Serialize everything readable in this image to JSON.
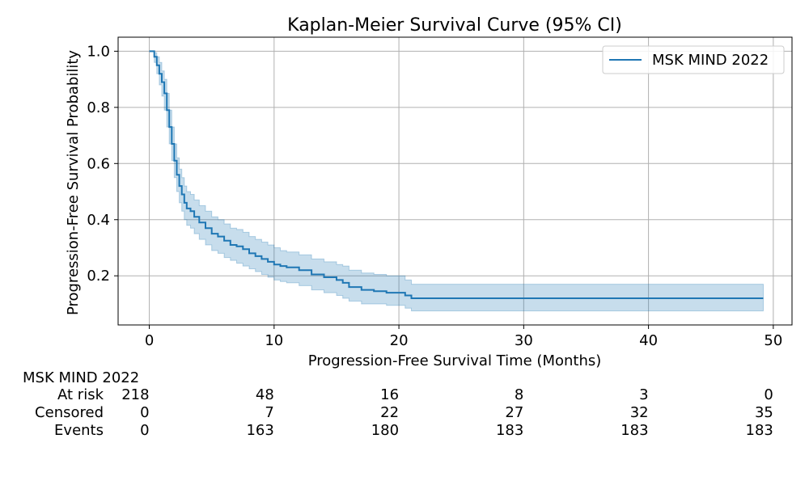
{
  "chart_data": {
    "type": "line",
    "title": "Kaplan-Meier Survival Curve (95% CI)",
    "xlabel": "Progression-Free Survival Time (Months)",
    "ylabel": "Progression-Free Survival Probability",
    "xlim": [
      -2.5,
      51.5
    ],
    "ylim": [
      0.025,
      1.05
    ],
    "xticks": [
      0,
      10,
      20,
      30,
      40,
      50
    ],
    "xtick_labels": [
      "0",
      "10",
      "20",
      "30",
      "40",
      "50"
    ],
    "yticks": [
      0.2,
      0.4,
      0.6,
      0.8,
      1.0
    ],
    "ytick_labels": [
      "0.2",
      "0.4",
      "0.6",
      "0.8",
      "1.0"
    ],
    "grid": true,
    "legend_position": "top-right",
    "colors": {
      "line": "#1f77b4",
      "band": "#1f77b4",
      "grid": "#b0b0b0"
    },
    "series": [
      {
        "name": "MSK MIND 2022",
        "x": [
          0,
          0.4,
          0.6,
          0.8,
          1.0,
          1.2,
          1.4,
          1.6,
          1.8,
          2.0,
          2.2,
          2.4,
          2.6,
          2.8,
          3.0,
          3.3,
          3.6,
          4.0,
          4.5,
          5.0,
          5.5,
          6.0,
          6.5,
          7.0,
          7.5,
          8.0,
          8.5,
          9.0,
          9.5,
          10.0,
          10.5,
          11.0,
          12.0,
          13.0,
          14.0,
          15.0,
          15.5,
          16.0,
          17.0,
          18.0,
          19.0,
          20.0,
          20.5,
          21.0,
          49.2
        ],
        "y": [
          1.0,
          0.98,
          0.95,
          0.92,
          0.89,
          0.85,
          0.79,
          0.73,
          0.67,
          0.61,
          0.56,
          0.52,
          0.49,
          0.46,
          0.44,
          0.43,
          0.41,
          0.39,
          0.37,
          0.35,
          0.34,
          0.325,
          0.31,
          0.305,
          0.295,
          0.28,
          0.27,
          0.26,
          0.25,
          0.24,
          0.235,
          0.23,
          0.22,
          0.205,
          0.195,
          0.185,
          0.175,
          0.16,
          0.15,
          0.145,
          0.14,
          0.14,
          0.13,
          0.12,
          0.12
        ],
        "ci_lower": [
          1.0,
          0.96,
          0.92,
          0.88,
          0.84,
          0.79,
          0.73,
          0.67,
          0.61,
          0.55,
          0.5,
          0.46,
          0.43,
          0.4,
          0.38,
          0.37,
          0.35,
          0.33,
          0.31,
          0.29,
          0.28,
          0.265,
          0.255,
          0.245,
          0.235,
          0.225,
          0.215,
          0.205,
          0.195,
          0.185,
          0.18,
          0.175,
          0.165,
          0.15,
          0.14,
          0.13,
          0.12,
          0.11,
          0.1,
          0.1,
          0.095,
          0.095,
          0.085,
          0.075,
          0.075
        ],
        "ci_upper": [
          1.0,
          0.995,
          0.98,
          0.96,
          0.93,
          0.9,
          0.85,
          0.79,
          0.73,
          0.67,
          0.62,
          0.58,
          0.55,
          0.52,
          0.5,
          0.49,
          0.47,
          0.45,
          0.43,
          0.41,
          0.4,
          0.385,
          0.37,
          0.365,
          0.355,
          0.34,
          0.33,
          0.32,
          0.31,
          0.3,
          0.29,
          0.285,
          0.275,
          0.26,
          0.25,
          0.24,
          0.235,
          0.22,
          0.21,
          0.205,
          0.2,
          0.2,
          0.185,
          0.17,
          0.17
        ]
      }
    ],
    "risk_table": {
      "group": "MSK MIND 2022",
      "times": [
        0,
        10,
        20,
        30,
        40,
        50
      ],
      "rows": [
        {
          "label": "At risk",
          "values": [
            "218",
            "48",
            "16",
            "8",
            "3",
            "0"
          ]
        },
        {
          "label": "Censored",
          "values": [
            "0",
            "7",
            "22",
            "27",
            "32",
            "35"
          ]
        },
        {
          "label": "Events",
          "values": [
            "0",
            "163",
            "180",
            "183",
            "183",
            "183"
          ]
        }
      ]
    }
  }
}
